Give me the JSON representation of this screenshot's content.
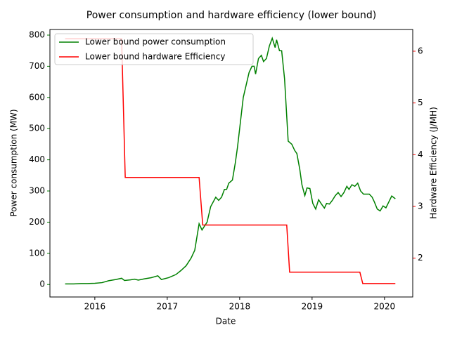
{
  "chart_data": {
    "type": "line",
    "title": "Power consumption and hardware efficiency (lower bound)",
    "xlabel": "Date",
    "ylabel": "Power consumption (MW)",
    "y2label": "Hardware Efficiency (J/MH)",
    "xlim": [
      2015.38,
      2020.39
    ],
    "xticks": [
      2016,
      2017,
      2018,
      2019,
      2020
    ],
    "ylim": [
      -40,
      818
    ],
    "yticks": [
      0,
      100,
      200,
      300,
      400,
      500,
      600,
      700,
      800
    ],
    "y2lim": [
      1.25,
      6.42
    ],
    "y2ticks": [
      2,
      3,
      4,
      5,
      6
    ],
    "ylabel_color": "#008000",
    "y2label_color": "#ff0000",
    "legend": "upper left",
    "grid": false,
    "series": [
      {
        "name": "Lower bound power consumption",
        "color": "#008000",
        "axis": "y",
        "x": [
          2015.59,
          2015.71,
          2015.81,
          2015.9,
          2016.0,
          2016.1,
          2016.19,
          2016.29,
          2016.37,
          2016.41,
          2016.49,
          2016.55,
          2016.6,
          2016.68,
          2016.78,
          2016.87,
          2016.92,
          2017.02,
          2017.12,
          2017.19,
          2017.26,
          2017.33,
          2017.38,
          2017.44,
          2017.48,
          2017.55,
          2017.6,
          2017.67,
          2017.71,
          2017.75,
          2017.79,
          2017.82,
          2017.85,
          2017.9,
          2017.94,
          2017.97,
          2018.01,
          2018.05,
          2018.09,
          2018.13,
          2018.17,
          2018.2,
          2018.22,
          2018.26,
          2018.3,
          2018.33,
          2018.37,
          2018.41,
          2018.45,
          2018.49,
          2018.51,
          2018.55,
          2018.58,
          2018.62,
          2018.67,
          2018.72,
          2018.76,
          2018.79,
          2018.83,
          2018.86,
          2018.9,
          2018.93,
          2018.97,
          2019.01,
          2019.05,
          2019.09,
          2019.13,
          2019.17,
          2019.2,
          2019.24,
          2019.28,
          2019.32,
          2019.36,
          2019.4,
          2019.44,
          2019.48,
          2019.51,
          2019.55,
          2019.59,
          2019.63,
          2019.67,
          2019.71,
          2019.75,
          2019.79,
          2019.83,
          2019.86,
          2019.9,
          2019.94,
          2019.98,
          2020.02,
          2020.06,
          2020.1,
          2020.15
        ],
        "values": [
          2,
          2,
          3,
          3,
          4,
          6,
          12,
          16,
          20,
          13,
          15,
          17,
          14,
          18,
          22,
          28,
          16,
          22,
          32,
          45,
          60,
          85,
          110,
          195,
          175,
          200,
          250,
          280,
          270,
          280,
          305,
          305,
          325,
          335,
          390,
          440,
          520,
          600,
          640,
          680,
          700,
          700,
          675,
          725,
          735,
          715,
          725,
          765,
          790,
          760,
          785,
          750,
          750,
          660,
          460,
          450,
          430,
          420,
          370,
          320,
          285,
          310,
          308,
          260,
          242,
          272,
          258,
          245,
          260,
          258,
          270,
          285,
          295,
          282,
          295,
          315,
          305,
          320,
          315,
          325,
          300,
          290,
          290,
          290,
          280,
          265,
          242,
          236,
          252,
          246,
          265,
          284,
          275
        ]
      },
      {
        "name": "Lower bound hardware Efficiency",
        "color": "#ff0000",
        "axis": "y2",
        "x": [
          2015.59,
          2016.37,
          2016.42,
          2017.44,
          2017.49,
          2018.65,
          2018.69,
          2019.66,
          2019.7,
          2020.15
        ],
        "values": [
          6.24,
          6.24,
          3.56,
          3.56,
          2.64,
          2.64,
          1.73,
          1.73,
          1.51,
          1.51
        ]
      }
    ]
  }
}
